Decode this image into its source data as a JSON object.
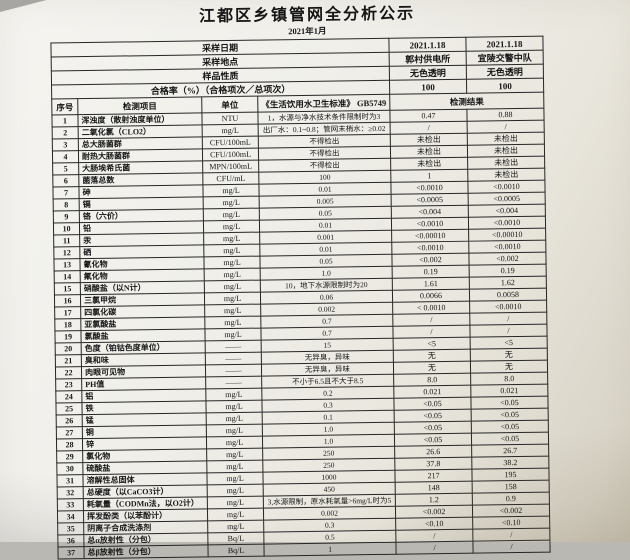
{
  "doc": {
    "title": "江都区乡镇管网全分析公示",
    "subtitle": "2021年1月"
  },
  "colors": {
    "paper": "#f0efea",
    "ink": "#1a1a1a"
  },
  "info_rows": [
    {
      "label": "采样日期",
      "v1": "2021.1.18",
      "v2": "2021.1.18"
    },
    {
      "label": "采样地点",
      "v1": "郭村供电所",
      "v2": "宜陵交警中队"
    },
    {
      "label": "样品性质",
      "v1": "无色透明",
      "v2": "无色透明"
    },
    {
      "label": "合格率（%）（合格项次／总项次）",
      "v1": "100",
      "v2": "100"
    }
  ],
  "columns": {
    "index": "序号",
    "item": "检测项目",
    "unit": "单位",
    "standard": "《生活饮用水卫生标准》 GB5749",
    "result": "检测结果"
  },
  "rows": [
    {
      "no": "1",
      "item": "浑浊度（散射浊度单位）",
      "unit": "NTU",
      "standard": "1，水源与净水技术条件限制时为3",
      "r1": "0.47",
      "r2": "0.88"
    },
    {
      "no": "2",
      "item": "二氧化氯（CLO2）",
      "unit": "mg/L",
      "standard": "出厂水：0.1~0.8；管网末梢水：≥0.02",
      "r1": "/",
      "r2": "/"
    },
    {
      "no": "3",
      "item": "总大肠菌群",
      "unit": "CFU/100mL",
      "standard": "不得检出",
      "r1": "未检出",
      "r2": "未检出"
    },
    {
      "no": "4",
      "item": "耐热大肠菌群",
      "unit": "CFU/100mL",
      "standard": "不得检出",
      "r1": "未检出",
      "r2": "未检出"
    },
    {
      "no": "5",
      "item": "大肠埃希氏菌",
      "unit": "MPN/100mL",
      "standard": "不得检出",
      "r1": "未检出",
      "r2": "未检出"
    },
    {
      "no": "6",
      "item": "菌落总数",
      "unit": "CFU/mL",
      "standard": "100",
      "r1": "1",
      "r2": "未检出"
    },
    {
      "no": "7",
      "item": "砷",
      "unit": "mg/L",
      "standard": "0.01",
      "r1": "<0.0010",
      "r2": "<0.0010"
    },
    {
      "no": "8",
      "item": "镉",
      "unit": "mg/L",
      "standard": "0.005",
      "r1": "<0.0005",
      "r2": "<0.0005"
    },
    {
      "no": "9",
      "item": "铬（六价）",
      "unit": "mg/L",
      "standard": "0.05",
      "r1": "<0.004",
      "r2": "<0.004"
    },
    {
      "no": "10",
      "item": "铅",
      "unit": "mg/L",
      "standard": "0.01",
      "r1": "<0.0010",
      "r2": "<0.0010"
    },
    {
      "no": "11",
      "item": "汞",
      "unit": "mg/L",
      "standard": "0.001",
      "r1": "<0.00010",
      "r2": "<0.00010"
    },
    {
      "no": "12",
      "item": "硒",
      "unit": "mg/L",
      "standard": "0.01",
      "r1": "<0.0010",
      "r2": "<0.0010"
    },
    {
      "no": "13",
      "item": "氰化物",
      "unit": "mg/L",
      "standard": "0.05",
      "r1": "<0.002",
      "r2": "<0.002"
    },
    {
      "no": "14",
      "item": "氟化物",
      "unit": "mg/L",
      "standard": "1.0",
      "r1": "0.19",
      "r2": "0.19"
    },
    {
      "no": "15",
      "item": "硝酸盐（以N计）",
      "unit": "mg/L",
      "standard": "10，地下水源限制时为20",
      "r1": "1.61",
      "r2": "1.62"
    },
    {
      "no": "16",
      "item": "三氯甲烷",
      "unit": "mg/L",
      "standard": "0.06",
      "r1": "0.0066",
      "r2": "0.0058"
    },
    {
      "no": "17",
      "item": "四氯化碳",
      "unit": "mg/L",
      "standard": "0.002",
      "r1": "< 0.0010",
      "r2": "<0.0010"
    },
    {
      "no": "18",
      "item": "亚氯酸盐",
      "unit": "mg/L",
      "standard": "0.7",
      "r1": "/",
      "r2": "/"
    },
    {
      "no": "19",
      "item": "氯酸盐",
      "unit": "mg/L",
      "standard": "0.7",
      "r1": "/",
      "r2": "/"
    },
    {
      "no": "20",
      "item": "色度（铂钴色度单位）",
      "unit": "——",
      "standard": "15",
      "r1": "<5",
      "r2": "<5"
    },
    {
      "no": "21",
      "item": "臭和味",
      "unit": "——",
      "standard": "无异臭，异味",
      "r1": "无",
      "r2": "无"
    },
    {
      "no": "22",
      "item": "肉眼可见物",
      "unit": "——",
      "standard": "无异臭，异味",
      "r1": "无",
      "r2": "无"
    },
    {
      "no": "23",
      "item": "PH值",
      "unit": "——",
      "standard": "不小于6.5且不大于8.5",
      "r1": "8.0",
      "r2": "8.0"
    },
    {
      "no": "24",
      "item": "铝",
      "unit": "mg/L",
      "standard": "0.2",
      "r1": "0.021",
      "r2": "0.021"
    },
    {
      "no": "25",
      "item": "铁",
      "unit": "mg/L",
      "standard": "0.3",
      "r1": "<0.05",
      "r2": "<0.05"
    },
    {
      "no": "26",
      "item": "锰",
      "unit": "mg/L",
      "standard": "0.1",
      "r1": "<0.05",
      "r2": "<0.05"
    },
    {
      "no": "27",
      "item": "铜",
      "unit": "mg/L",
      "standard": "1.0",
      "r1": "<0.05",
      "r2": "<0.05"
    },
    {
      "no": "28",
      "item": "锌",
      "unit": "mg/L",
      "standard": "1.0",
      "r1": "<0.05",
      "r2": "<0.05"
    },
    {
      "no": "29",
      "item": "氯化物",
      "unit": "mg/L",
      "standard": "250",
      "r1": "26.6",
      "r2": "26.7"
    },
    {
      "no": "30",
      "item": "硫酸盐",
      "unit": "mg/L",
      "standard": "250",
      "r1": "37.8",
      "r2": "38.2"
    },
    {
      "no": "31",
      "item": "溶解性总固体",
      "unit": "mg/L",
      "standard": "1000",
      "r1": "217",
      "r2": "195"
    },
    {
      "no": "32",
      "item": "总硬度（以CaCO3计）",
      "unit": "mg/L",
      "standard": "450",
      "r1": "148",
      "r2": "158"
    },
    {
      "no": "33",
      "item": "耗氧量（CODMn法，以O2计）",
      "unit": "mg/L",
      "standard": "3,水源限制，原水耗氧量>6mg/L时为5",
      "r1": "1.2",
      "r2": "0.9"
    },
    {
      "no": "34",
      "item": "挥发酚类（以苯酚计）",
      "unit": "mg/L",
      "standard": "0.002",
      "r1": "<0.002",
      "r2": "<0.002"
    },
    {
      "no": "35",
      "item": "阴离子合成洗涤剂",
      "unit": "mg/L",
      "standard": "0.3",
      "r1": "<0.10",
      "r2": "<0.10"
    },
    {
      "no": "36",
      "item": "总α放射性（分包）",
      "unit": "Bq/L",
      "standard": "0.5",
      "r1": "/",
      "r2": "/"
    },
    {
      "no": "37",
      "item": "总β放射性（分包）",
      "unit": "Bq/L",
      "standard": "1",
      "r1": "/",
      "r2": "/"
    }
  ]
}
